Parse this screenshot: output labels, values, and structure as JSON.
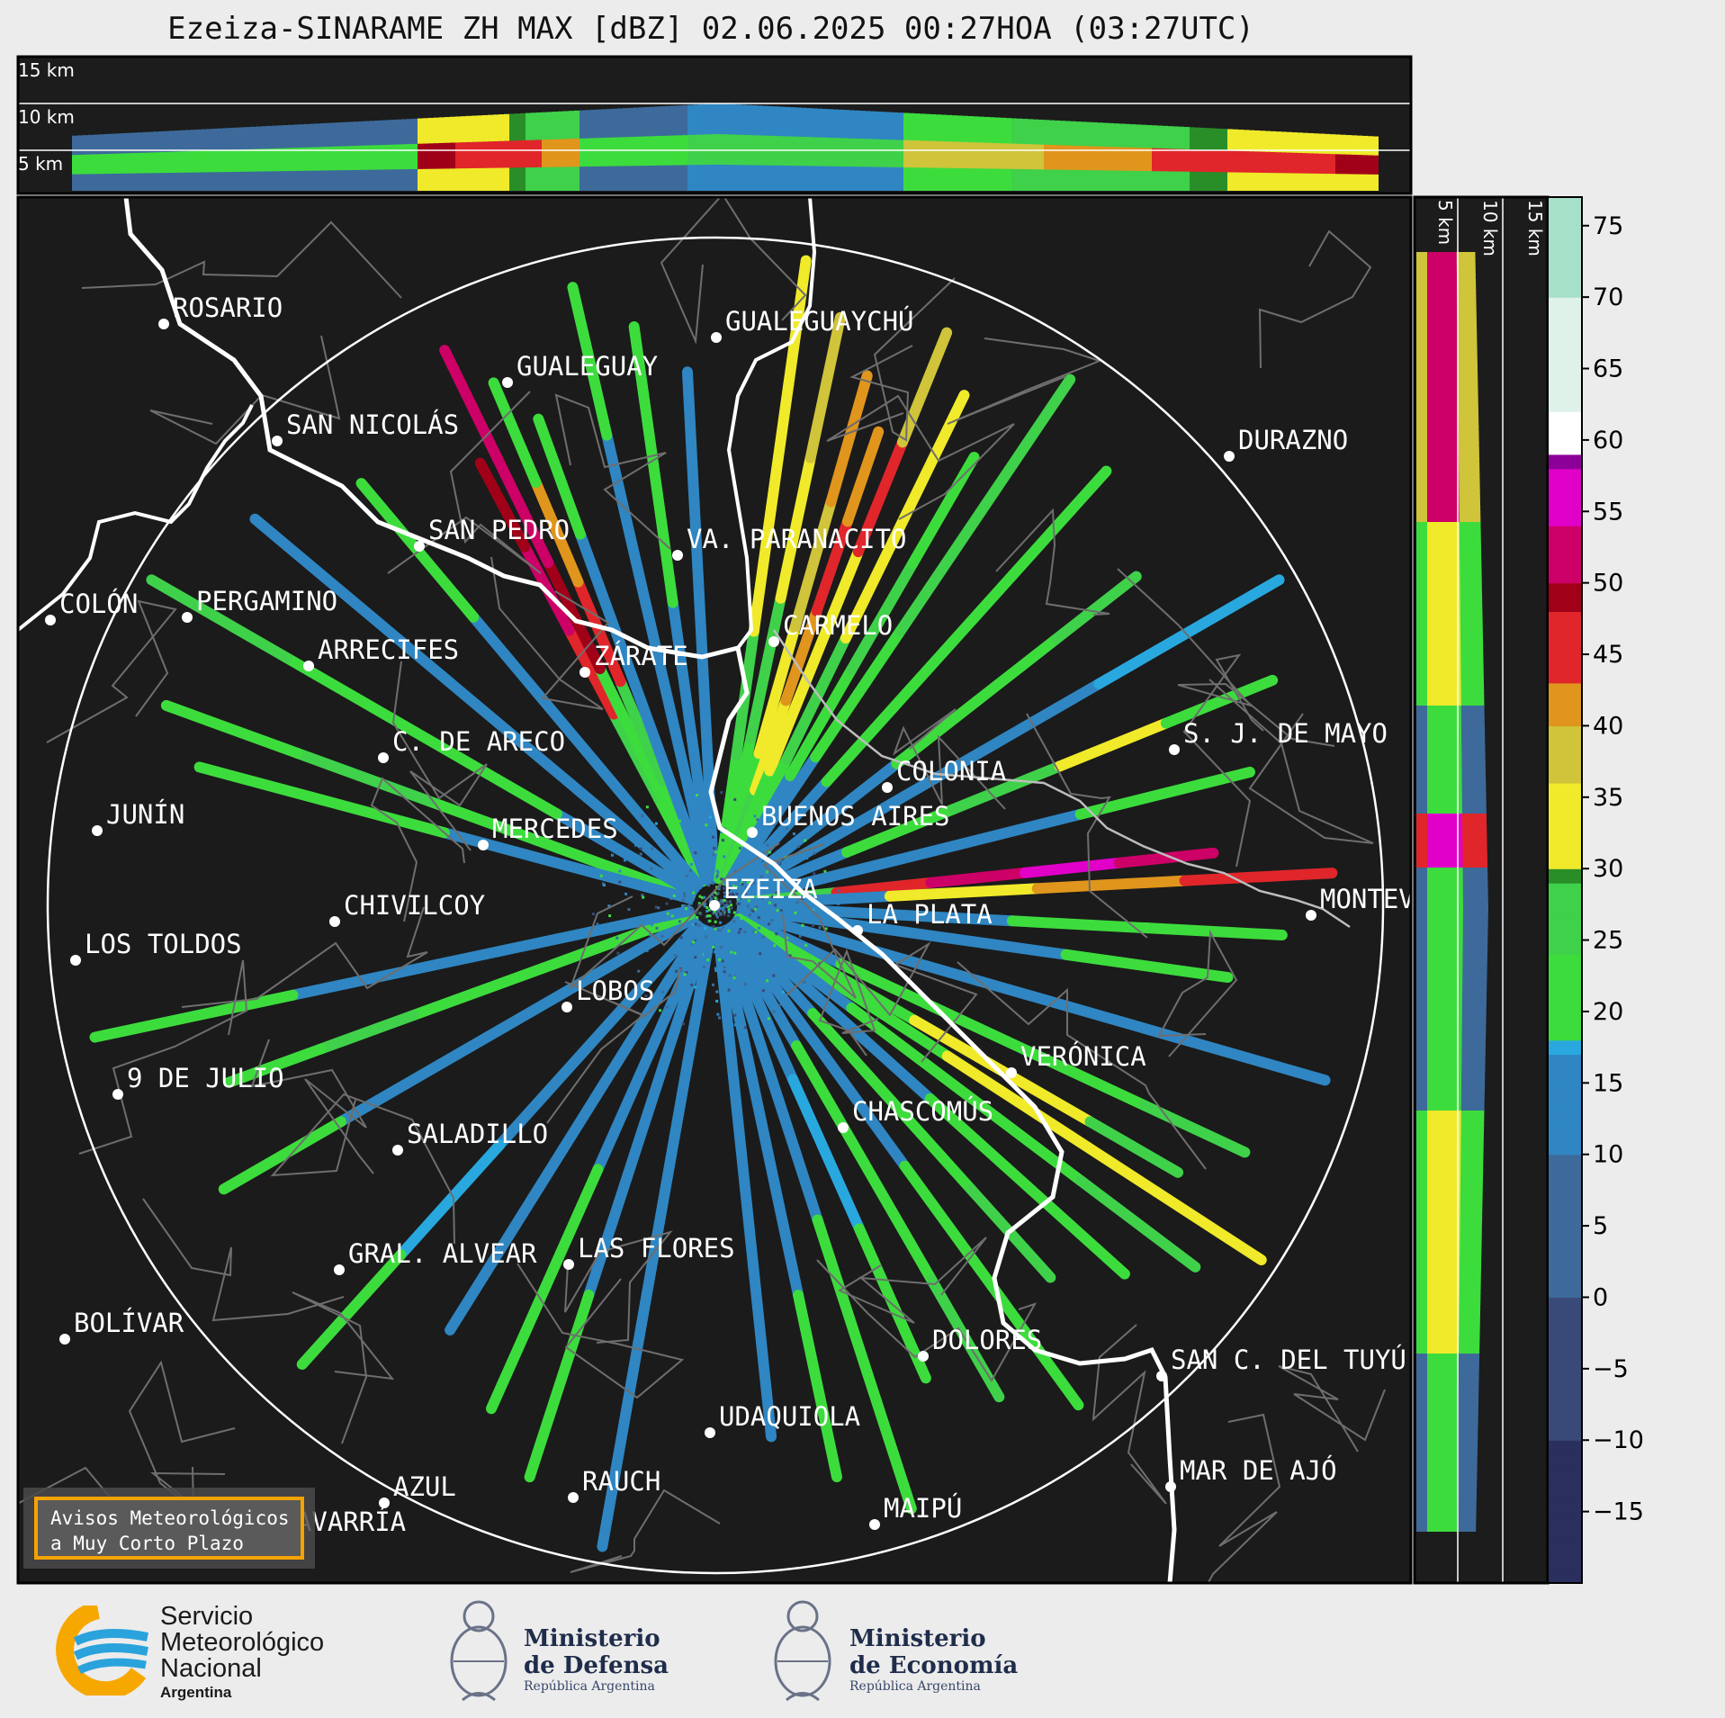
{
  "title": "Ezeiza-SINARAME ZH MAX [dBZ] 02.06.2025 00:27HOA (03:27UTC)",
  "top_panel": {
    "height_labels": [
      "15 km",
      "10 km",
      "5 km"
    ]
  },
  "side_panel": {
    "height_labels": [
      "5 km",
      "10 km",
      "15 km"
    ]
  },
  "colorbar": {
    "ticks": [
      "75",
      "70",
      "65",
      "60",
      "55",
      "50",
      "45",
      "40",
      "35",
      "30",
      "25",
      "20",
      "15",
      "10",
      "5",
      "0",
      "−5",
      "−10",
      "−15"
    ],
    "min": -20,
    "max": 77
  },
  "cities": [
    {
      "name": "ROSARIO"
    },
    {
      "name": "GUALEGUAYCHÚ"
    },
    {
      "name": "GUALEGUAY"
    },
    {
      "name": "SAN NICOLÁS"
    },
    {
      "name": "DURAZNO"
    },
    {
      "name": "SAN PEDRO"
    },
    {
      "name": "VA. PARANACITO"
    },
    {
      "name": "COLÓN"
    },
    {
      "name": "PERGAMINO"
    },
    {
      "name": "CARMELO"
    },
    {
      "name": "ARRECIFES"
    },
    {
      "name": "ZÁRATE"
    },
    {
      "name": "S. J. DE MAYO"
    },
    {
      "name": "C. DE ARECO"
    },
    {
      "name": "COLONIA"
    },
    {
      "name": "JUNÍN"
    },
    {
      "name": "BUENOS AIRES"
    },
    {
      "name": "MERCEDES"
    },
    {
      "name": "EZEIZA"
    },
    {
      "name": "MONTEVIDEO"
    },
    {
      "name": "CHIVILCOY"
    },
    {
      "name": "LA PLATA"
    },
    {
      "name": "LOS TOLDOS"
    },
    {
      "name": "LOBOS"
    },
    {
      "name": "VERÓNICA"
    },
    {
      "name": "9 DE JULIO"
    },
    {
      "name": "CHASCOMÚS"
    },
    {
      "name": "SALADILLO"
    },
    {
      "name": "GRAL. ALVEAR"
    },
    {
      "name": "LAS FLORES"
    },
    {
      "name": "BOLÍVAR"
    },
    {
      "name": "DOLORES"
    },
    {
      "name": "SAN C. DEL TUYÚ"
    },
    {
      "name": "UDAQUIOLA"
    },
    {
      "name": "MAR DE AJÓ"
    },
    {
      "name": "AZUL"
    },
    {
      "name": "RAUCH"
    },
    {
      "name": "MAIPÚ"
    },
    {
      "name": "OLAVARRÍA"
    }
  ],
  "warning_box": {
    "line1": "Avisos Meteorológicos",
    "line2": "a Muy Corto Plazo"
  },
  "footer": {
    "smn": {
      "line1": "Servicio",
      "line2": "Meteorológico",
      "line3": "Nacional",
      "line4": "Argentina"
    },
    "defensa": {
      "line1": "Ministerio",
      "line2": "de Defensa",
      "line3": "República Argentina"
    },
    "economia": {
      "line1": "Ministerio",
      "line2": "de Economía",
      "line3": "República Argentina"
    }
  }
}
